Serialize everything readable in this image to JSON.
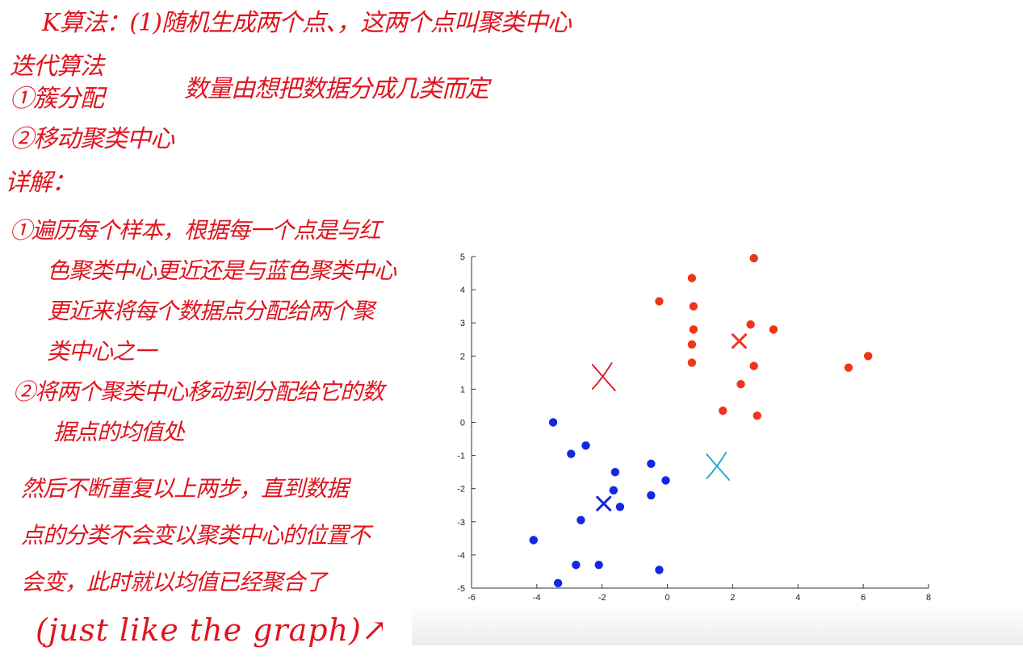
{
  "notes": {
    "line1": "K算法：(1)随机生成两个点、，这两个点叫聚类中心",
    "line2": "迭代算法",
    "line3": "①簇分配",
    "line3b": "数量由想把数据分成几类而定",
    "line4": "②移动聚类中心",
    "line5": "详解：",
    "line6": "①遍历每个样本，根据每一个点是与红",
    "line7": "色聚类中心更近还是与蓝色聚类中心",
    "line8": "更近来将每个数据点分配给两个聚",
    "line9": "类中心之一",
    "line10": "②将两个聚类中心移动到分配给它的数",
    "line11": "据点的均值处",
    "line12": "然后不断重复以上两步，直到数据",
    "line13": "点的分类不会变以聚类中心的位置不",
    "line14": "会变，此时就以均值已经聚合了",
    "line15": "(just like the graph)↗"
  },
  "chart_data": {
    "type": "scatter",
    "title": "",
    "xlabel": "",
    "ylabel": "",
    "xlim": [
      -6,
      8
    ],
    "ylim": [
      -5,
      5
    ],
    "xticks": [
      "-6",
      "-4",
      "-2",
      "0",
      "2",
      "4",
      "6",
      "8"
    ],
    "yticks": [
      "-5",
      "-4",
      "-3",
      "-2",
      "-1",
      "0",
      "1",
      "2",
      "3",
      "4",
      "5"
    ],
    "series": [
      {
        "color": "#1428e0",
        "x": [
          -3.5,
          -2.95,
          -2.5,
          -1.6,
          -1.65,
          -1.45,
          -0.5,
          -0.05,
          -0.5,
          -2.65,
          -4.1,
          -2.8,
          -2.1,
          -0.25,
          -3.35
        ],
        "y": [
          0.0,
          -0.95,
          -0.7,
          -1.5,
          -2.05,
          -2.55,
          -1.25,
          -1.75,
          -2.2,
          -2.95,
          -3.55,
          -4.3,
          -4.3,
          -4.45,
          -4.85
        ]
      },
      {
        "color": "#f0341c",
        "x": [
          -0.25,
          0.75,
          0.8,
          0.8,
          0.75,
          0.75,
          2.65,
          2.55,
          3.25,
          2.65,
          2.25,
          1.7,
          2.75,
          5.55,
          6.15
        ],
        "y": [
          3.65,
          4.35,
          3.5,
          2.8,
          2.35,
          1.8,
          4.95,
          2.95,
          2.8,
          1.7,
          1.15,
          0.35,
          0.2,
          1.65,
          2.0
        ]
      }
    ],
    "centroids": [
      {
        "color": "#1428e0",
        "x": -1.95,
        "y": -2.45
      },
      {
        "color": "#f0341c",
        "x": 2.2,
        "y": 2.45
      }
    ],
    "hand_marks": [
      {
        "color": "#e0141e",
        "x": -1.95,
        "y": 1.35
      },
      {
        "color": "#19a7c9",
        "x": 1.55,
        "y": -1.35
      }
    ]
  }
}
